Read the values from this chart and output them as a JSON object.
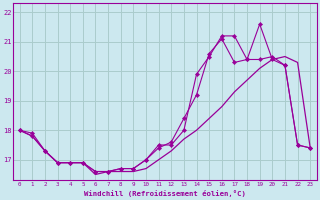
{
  "background_color": "#cce8ef",
  "grid_color": "#aacccc",
  "line_color": "#990099",
  "xlabel": "Windchill (Refroidissement éolien,°C)",
  "hours": [
    0,
    1,
    2,
    3,
    4,
    5,
    6,
    7,
    8,
    9,
    10,
    11,
    12,
    13,
    14,
    15,
    16,
    17,
    18,
    19,
    20,
    21,
    22,
    23
  ],
  "series1": [
    18.0,
    17.9,
    17.3,
    16.9,
    16.9,
    16.9,
    16.6,
    16.6,
    16.7,
    16.7,
    17.0,
    17.5,
    17.5,
    18.0,
    19.9,
    20.5,
    21.2,
    21.2,
    20.4,
    20.4,
    20.5,
    20.2,
    17.5,
    17.4
  ],
  "series2": [
    18.0,
    17.8,
    17.3,
    16.9,
    16.9,
    16.9,
    16.5,
    16.6,
    16.6,
    16.6,
    16.7,
    17.0,
    17.3,
    17.7,
    18.0,
    18.4,
    18.8,
    19.3,
    19.7,
    20.1,
    20.4,
    20.5,
    20.3,
    17.4
  ],
  "series3": [
    18.0,
    17.8,
    17.3,
    16.9,
    16.9,
    16.9,
    16.6,
    16.6,
    16.7,
    16.7,
    17.0,
    17.4,
    17.6,
    18.4,
    19.2,
    20.6,
    21.1,
    20.3,
    20.4,
    21.6,
    20.4,
    20.2,
    17.5,
    17.4
  ],
  "ylim": [
    16.3,
    22.3
  ],
  "yticks": [
    17,
    18,
    19,
    20,
    21,
    22
  ],
  "xlim": [
    -0.5,
    23.5
  ]
}
